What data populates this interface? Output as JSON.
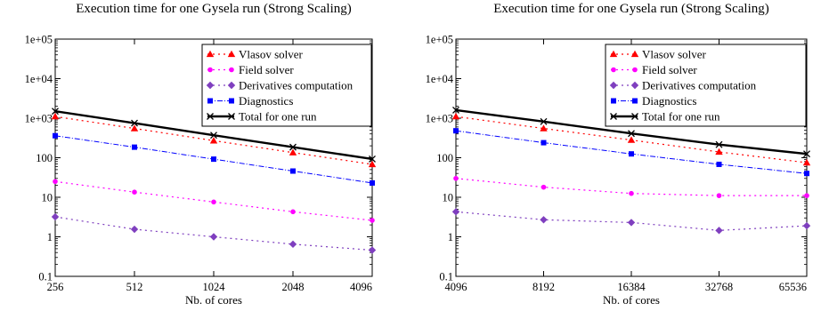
{
  "chart_data": [
    {
      "type": "line",
      "title": "Execution time for one Gysela run (Strong Scaling)",
      "xlabel": "Nb. of cores",
      "ylabel": "",
      "yscale": "log",
      "xscale": "log2",
      "ylim": [
        0.1,
        100000
      ],
      "y_tick_labels": [
        "0.1",
        "1",
        "10",
        "100",
        "1e+03",
        "1e+04",
        "1e+05"
      ],
      "x": [
        256,
        512,
        1024,
        2048,
        4096
      ],
      "x_tick_labels": [
        "256",
        "512",
        "1024",
        "2048",
        "4096"
      ],
      "grid": false,
      "legend_position": "top-right",
      "series": [
        {
          "name": "Vlasov solver",
          "color": "#ff0000",
          "marker": "triangle",
          "dash": "2,4",
          "width": 1.2,
          "values": [
            1100,
            550,
            270,
            135,
            68
          ]
        },
        {
          "name": "Field solver",
          "color": "#ff00ff",
          "marker": "circle",
          "dash": "2,4",
          "width": 1.2,
          "values": [
            25,
            13.5,
            7.6,
            4.3,
            2.6
          ]
        },
        {
          "name": "Derivatives computation",
          "color": "#7f3fbf",
          "marker": "diamond",
          "dash": "2,4",
          "width": 1.2,
          "values": [
            3.2,
            1.55,
            1.0,
            0.65,
            0.46
          ]
        },
        {
          "name": "Diagnostics",
          "color": "#0000ff",
          "marker": "square",
          "dash": "6,2,1,2",
          "width": 1.0,
          "values": [
            360,
            185,
            92,
            46,
            23
          ]
        },
        {
          "name": "Total for one run",
          "color": "#000000",
          "marker": "cross",
          "dash": "",
          "width": 2.4,
          "values": [
            1500,
            750,
            370,
            185,
            93
          ]
        }
      ]
    },
    {
      "type": "line",
      "title": "Execution time for one Gysela run (Strong Scaling)",
      "xlabel": "Nb. of cores",
      "ylabel": "",
      "yscale": "log",
      "xscale": "log2",
      "ylim": [
        0.1,
        100000
      ],
      "y_tick_labels": [
        "0.1",
        "1",
        "10",
        "100",
        "1e+03",
        "1e+04",
        "1e+05"
      ],
      "x": [
        4096,
        8192,
        16384,
        32768,
        65536
      ],
      "x_tick_labels": [
        "4096",
        "8192",
        "16384",
        "32768",
        "65536"
      ],
      "grid": false,
      "legend_position": "top-right",
      "series": [
        {
          "name": "Vlasov solver",
          "color": "#ff0000",
          "marker": "triangle",
          "dash": "2,4",
          "width": 1.2,
          "values": [
            1100,
            550,
            280,
            140,
            75
          ]
        },
        {
          "name": "Field solver",
          "color": "#ff00ff",
          "marker": "circle",
          "dash": "2,4",
          "width": 1.2,
          "values": [
            30,
            18,
            12.5,
            11,
            11
          ]
        },
        {
          "name": "Derivatives computation",
          "color": "#7f3fbf",
          "marker": "diamond",
          "dash": "2,4",
          "width": 1.2,
          "values": [
            4.3,
            2.7,
            2.3,
            1.45,
            1.9
          ]
        },
        {
          "name": "Diagnostics",
          "color": "#0000ff",
          "marker": "square",
          "dash": "6,2,1,2",
          "width": 1.0,
          "values": [
            480,
            240,
            125,
            68,
            40
          ]
        },
        {
          "name": "Total for one run",
          "color": "#000000",
          "marker": "cross",
          "dash": "",
          "width": 2.4,
          "values": [
            1600,
            820,
            410,
            215,
            125
          ]
        }
      ]
    }
  ]
}
